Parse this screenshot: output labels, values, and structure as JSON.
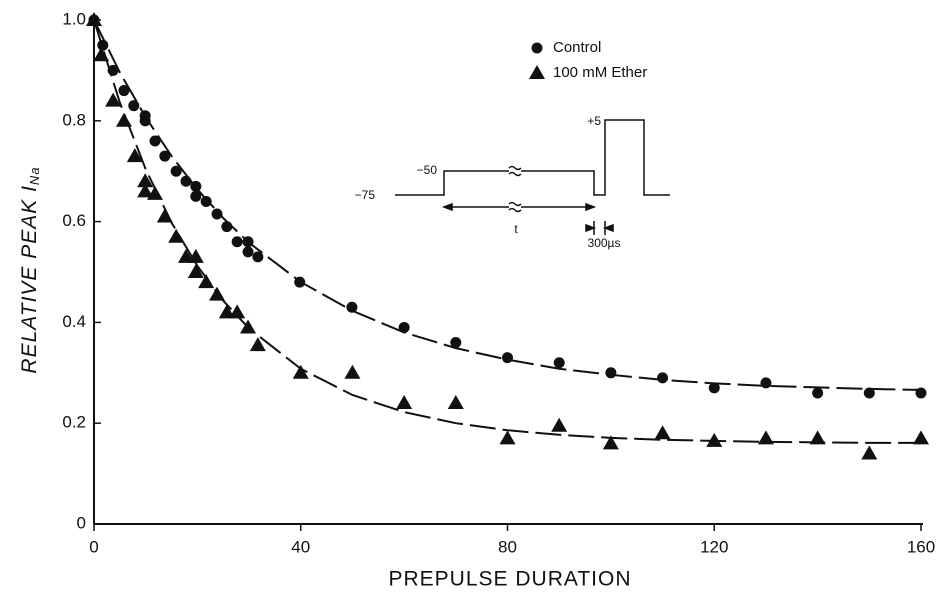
{
  "chart_data": {
    "type": "scatter",
    "xlabel": "PREPULSE DURATION",
    "ylabel": "RELATIVE PEAK I",
    "ylabel_subscript": "Na",
    "xlim": [
      0,
      160
    ],
    "ylim": [
      0,
      1
    ],
    "xticks": [
      0,
      40,
      80,
      120,
      160
    ],
    "yticks": [
      0,
      0.2,
      0.4,
      0.6,
      0.8,
      {
        "value": 1,
        "label": "1.0"
      }
    ],
    "grid": false,
    "legend": "top",
    "series": [
      {
        "name": "Control",
        "color": "#111111",
        "marker": "circle",
        "x": [
          0,
          1.7,
          3.7,
          5.8,
          7.7,
          9.9,
          9.9,
          11.8,
          13.7,
          15.9,
          17.8,
          19.7,
          19.7,
          21.7,
          23.8,
          25.7,
          27.7,
          29.8,
          29.8,
          31.7,
          39.8,
          49.9,
          60,
          70,
          80,
          90,
          100,
          110,
          120,
          130,
          140,
          150,
          160
        ],
        "values": [
          1.0,
          0.95,
          0.9,
          0.86,
          0.83,
          0.81,
          0.8,
          0.76,
          0.73,
          0.7,
          0.68,
          0.67,
          0.65,
          0.64,
          0.615,
          0.59,
          0.56,
          0.56,
          0.54,
          0.53,
          0.48,
          0.43,
          0.39,
          0.36,
          0.33,
          0.32,
          0.3,
          0.29,
          0.27,
          0.28,
          0.26,
          0.26,
          0.26
        ],
        "fit": {
          "x": [
            0,
            5,
            10,
            15,
            20,
            25,
            30,
            40,
            50,
            60,
            70,
            80,
            90,
            100,
            110,
            120,
            130,
            140,
            150,
            160
          ],
          "values": [
            1.0,
            0.896,
            0.807,
            0.73,
            0.664,
            0.607,
            0.558,
            0.48,
            0.423,
            0.38,
            0.349,
            0.326,
            0.308,
            0.296,
            0.286,
            0.279,
            0.274,
            0.271,
            0.268,
            0.266
          ]
        }
      },
      {
        "name": "100 mM Ether",
        "color": "#111111",
        "marker": "triangle",
        "x": [
          0,
          1.4,
          3.7,
          5.8,
          7.9,
          9.9,
          9.9,
          11.8,
          13.7,
          15.9,
          17.8,
          19.7,
          19.7,
          21.7,
          23.8,
          25.7,
          27.7,
          29.8,
          31.7,
          40,
          50,
          60,
          70,
          80,
          90,
          100,
          110,
          120,
          130,
          140,
          150,
          160
        ],
        "values": [
          1.0,
          0.93,
          0.84,
          0.8,
          0.73,
          0.68,
          0.66,
          0.655,
          0.61,
          0.57,
          0.53,
          0.53,
          0.5,
          0.48,
          0.455,
          0.42,
          0.42,
          0.39,
          0.355,
          0.3,
          0.3,
          0.24,
          0.24,
          0.17,
          0.195,
          0.16,
          0.18,
          0.165,
          0.17,
          0.17,
          0.14,
          0.17
        ],
        "fit": {
          "x": [
            0,
            5,
            10,
            15,
            20,
            25,
            30,
            40,
            50,
            60,
            70,
            80,
            90,
            100,
            110,
            120,
            130,
            140,
            150,
            160
          ],
          "values": [
            1.0,
            0.836,
            0.704,
            0.598,
            0.512,
            0.443,
            0.388,
            0.308,
            0.256,
            0.222,
            0.2,
            0.186,
            0.177,
            0.171,
            0.167,
            0.165,
            0.163,
            0.162,
            0.161,
            0.161
          ]
        }
      }
    ],
    "inset": {
      "v_hold": "−75",
      "v_pre": "−50",
      "v_test": "+5",
      "t_label": "t",
      "gap_label": "300µs"
    }
  }
}
